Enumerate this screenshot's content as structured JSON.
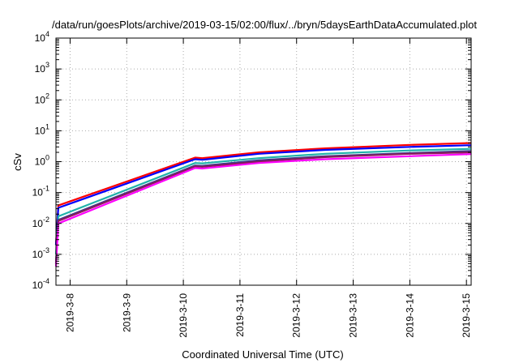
{
  "chart_data": {
    "type": "line",
    "title": "/data/run/goesPlots/archive/2019-03-15/02:00/flux/../bryn/5daysEarthDataAccumulated.plot",
    "xlabel": "Coordinated Universal Time (UTC)",
    "ylabel": "cSv",
    "yscale": "log",
    "ylim": [
      0.0001,
      10000
    ],
    "xlim": [
      "2019-03-07T18:00",
      "2019-03-15T02:00"
    ],
    "x_ticks": [
      "2019-3-8",
      "2019-3-9",
      "2019-3-10",
      "2019-3-11",
      "2019-3-12",
      "2019-3-13",
      "2019-3-14",
      "2019-3-15"
    ],
    "y_ticks": [
      {
        "value": 0.0001,
        "mantissa": "10",
        "exp": "-4"
      },
      {
        "value": 0.001,
        "mantissa": "10",
        "exp": "-3"
      },
      {
        "value": 0.01,
        "mantissa": "10",
        "exp": "-2"
      },
      {
        "value": 0.1,
        "mantissa": "10",
        "exp": "-1"
      },
      {
        "value": 1,
        "mantissa": "10",
        "exp": "0"
      },
      {
        "value": 10,
        "mantissa": "10",
        "exp": "1"
      },
      {
        "value": 100,
        "mantissa": "10",
        "exp": "2"
      },
      {
        "value": 1000,
        "mantissa": "10",
        "exp": "3"
      },
      {
        "value": 10000,
        "mantissa": "10",
        "exp": "4"
      }
    ],
    "grid": true,
    "legend": "none",
    "series": [
      {
        "color": "#ff0000",
        "points": [
          [
            "2019-03-07T18:00",
            0.002
          ],
          [
            "2019-03-07T19:00",
            0.038
          ],
          [
            "2019-03-10T05:00",
            1.35
          ],
          [
            "2019-03-10T08:00",
            1.3
          ],
          [
            "2019-03-11T08:00",
            2.0
          ],
          [
            "2019-03-12T12:00",
            2.7
          ],
          [
            "2019-03-14T00:00",
            3.5
          ],
          [
            "2019-03-15T02:00",
            4.0
          ]
        ]
      },
      {
        "color": "#0000ff",
        "points": [
          [
            "2019-03-07T18:00",
            0.002
          ],
          [
            "2019-03-07T19:00",
            0.032
          ],
          [
            "2019-03-10T05:00",
            1.2
          ],
          [
            "2019-03-10T08:00",
            1.15
          ],
          [
            "2019-03-11T08:00",
            1.8
          ],
          [
            "2019-03-12T12:00",
            2.4
          ],
          [
            "2019-03-14T00:00",
            3.0
          ],
          [
            "2019-03-15T02:00",
            3.4
          ]
        ]
      },
      {
        "color": "#20b2aa",
        "points": [
          [
            "2019-03-07T18:00",
            0.001
          ],
          [
            "2019-03-07T19:00",
            0.017
          ],
          [
            "2019-03-10T05:00",
            0.9
          ],
          [
            "2019-03-10T08:00",
            0.88
          ],
          [
            "2019-03-11T08:00",
            1.3
          ],
          [
            "2019-03-12T12:00",
            1.8
          ],
          [
            "2019-03-14T00:00",
            2.3
          ],
          [
            "2019-03-15T02:00",
            2.6
          ]
        ]
      },
      {
        "color": "#3a3a8c",
        "points": [
          [
            "2019-03-07T18:00",
            0.0005
          ],
          [
            "2019-03-07T19:00",
            0.013
          ],
          [
            "2019-03-10T05:00",
            0.75
          ],
          [
            "2019-03-10T08:00",
            0.73
          ],
          [
            "2019-03-11T08:00",
            1.1
          ],
          [
            "2019-03-12T12:00",
            1.5
          ],
          [
            "2019-03-14T00:00",
            1.9
          ],
          [
            "2019-03-15T02:00",
            2.2
          ]
        ]
      },
      {
        "color": "#8b1a5a",
        "points": [
          [
            "2019-03-07T18:00",
            0.0005
          ],
          [
            "2019-03-07T19:00",
            0.012
          ],
          [
            "2019-03-10T05:00",
            0.7
          ],
          [
            "2019-03-10T08:00",
            0.68
          ],
          [
            "2019-03-11T08:00",
            1.0
          ],
          [
            "2019-03-12T12:00",
            1.4
          ],
          [
            "2019-03-14T00:00",
            1.8
          ],
          [
            "2019-03-15T02:00",
            2.0
          ]
        ]
      },
      {
        "color": "#ff00ff",
        "points": [
          [
            "2019-03-07T18:00",
            0.0004
          ],
          [
            "2019-03-07T19:00",
            0.01
          ],
          [
            "2019-03-10T05:00",
            0.62
          ],
          [
            "2019-03-10T08:00",
            0.6
          ],
          [
            "2019-03-11T08:00",
            0.9
          ],
          [
            "2019-03-12T12:00",
            1.2
          ],
          [
            "2019-03-14T00:00",
            1.5
          ],
          [
            "2019-03-15T02:00",
            1.75
          ]
        ]
      }
    ]
  }
}
